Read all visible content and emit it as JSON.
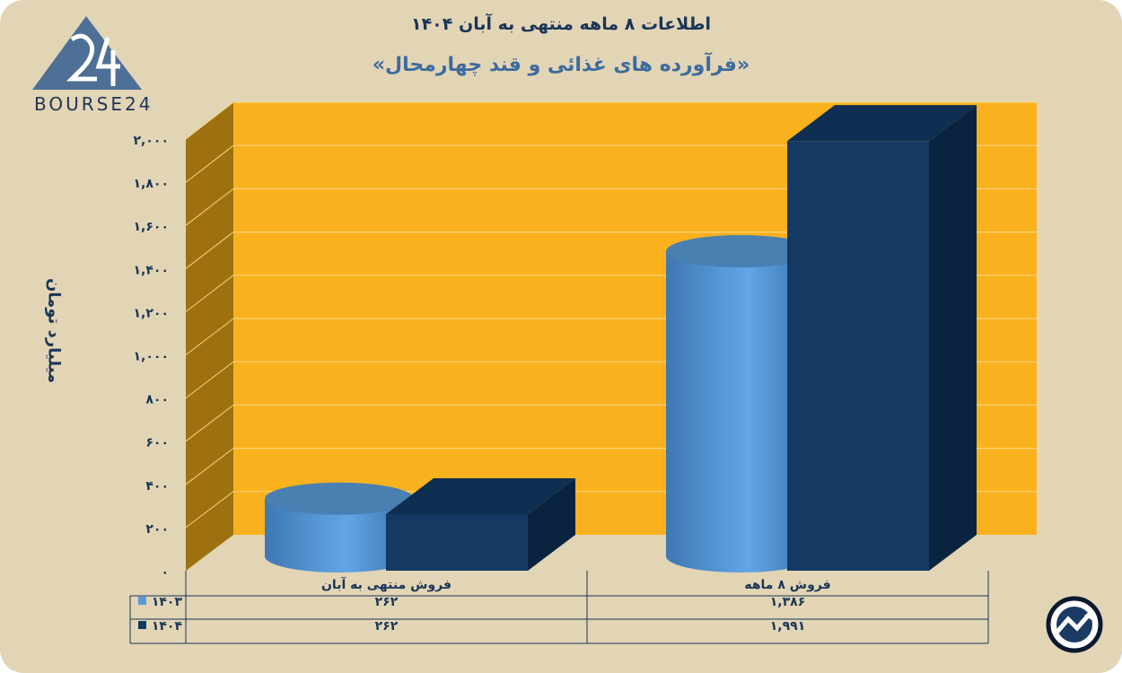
{
  "header": {
    "line1": "اطلاعات ۸ ماهه منتهی به آبان ۱۴۰۴",
    "line2": "«فرآورده های غذائی و قند چهارمحال»"
  },
  "brand": {
    "logo_text": "BOURSE24"
  },
  "chart_data": {
    "type": "bar",
    "title": "«فرآورده های غذائی و قند چهارمحال»",
    "ylabel": "میلیارد تومان",
    "ylim": [
      0,
      2000
    ],
    "yticks": [
      0,
      200,
      400,
      600,
      800,
      1000,
      1200,
      1400,
      1600,
      1800,
      2000
    ],
    "ytick_labels": [
      "۰",
      "۲۰۰",
      "۴۰۰",
      "۶۰۰",
      "۸۰۰",
      "۱,۰۰۰",
      "۱,۲۰۰",
      "۱,۴۰۰",
      "۱,۶۰۰",
      "۱,۸۰۰",
      "۲,۰۰۰"
    ],
    "categories": [
      "فروش منتهی به  آبان",
      "فروش  ۸  ماهه"
    ],
    "series": [
      {
        "name": "۱۴۰۳",
        "values": [
          262,
          1386
        ],
        "value_labels": [
          "۲۶۲",
          "۱,۳۸۶"
        ],
        "color": "#5a9ad8",
        "shape": "cylinder"
      },
      {
        "name": "۱۴۰۴",
        "values": [
          262,
          1991
        ],
        "value_labels": [
          "۲۶۲",
          "۱,۹۹۱"
        ],
        "color": "#143a63",
        "shape": "box"
      }
    ],
    "grid": true,
    "legend": "table-left",
    "colors": {
      "wall": "#f9b21d",
      "side_wall": "#9e7110",
      "gridline": "#fbd27a"
    }
  }
}
